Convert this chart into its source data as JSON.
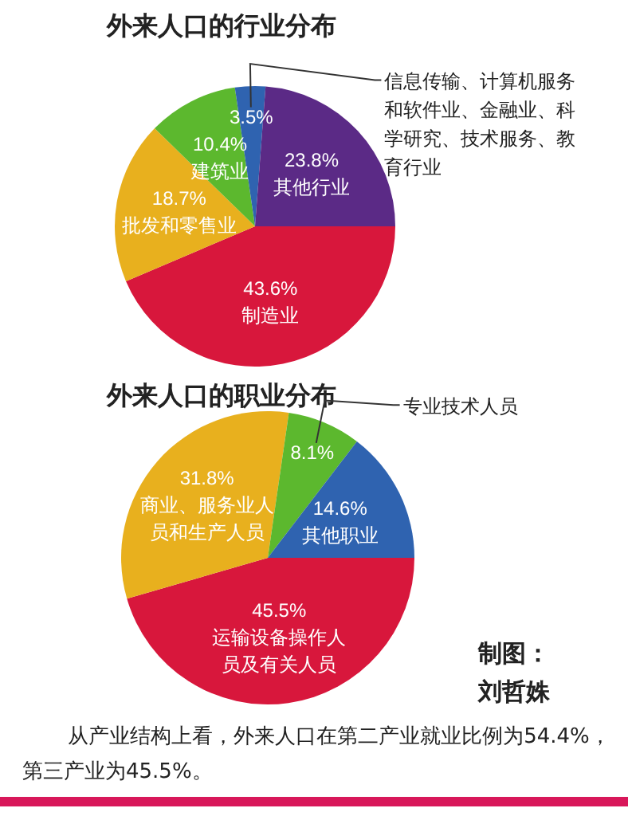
{
  "chart_data": [
    {
      "type": "pie",
      "title": "外来人口的行业分布",
      "data_labels": true,
      "categories": [
        "制造业",
        "批发和零售业",
        "建筑业",
        "信息传输、计算机服务和软件业、金融业、科学研究、技术服务、教育行业",
        "其他行业"
      ],
      "values": [
        43.6,
        18.7,
        10.4,
        3.5,
        23.8
      ],
      "value_labels": [
        "43.6%",
        "18.7%",
        "10.4%",
        "3.5%",
        "23.8%"
      ],
      "colors": [
        "#d8173c",
        "#e8b01e",
        "#5cb82e",
        "#2f63b0",
        "#5b2a86"
      ]
    },
    {
      "type": "pie",
      "title": "外来人口的职业分布",
      "data_labels": true,
      "categories": [
        "运输设备操作人员及有关人员",
        "商业、服务业人员和生产人员",
        "专业技术人员",
        "其他职业"
      ],
      "values": [
        45.5,
        31.8,
        8.1,
        14.6
      ],
      "value_labels": [
        "45.5%",
        "31.8%",
        "8.1%",
        "14.6%"
      ],
      "colors": [
        "#d8173c",
        "#e8b01e",
        "#5cb82e",
        "#2f63b0"
      ],
      "annotations": [
        "制图：刘哲姝",
        "从产业结构上看，外来人口在第二产业就业比例为54.4%，第三产业为45.5%。"
      ]
    }
  ]
}
